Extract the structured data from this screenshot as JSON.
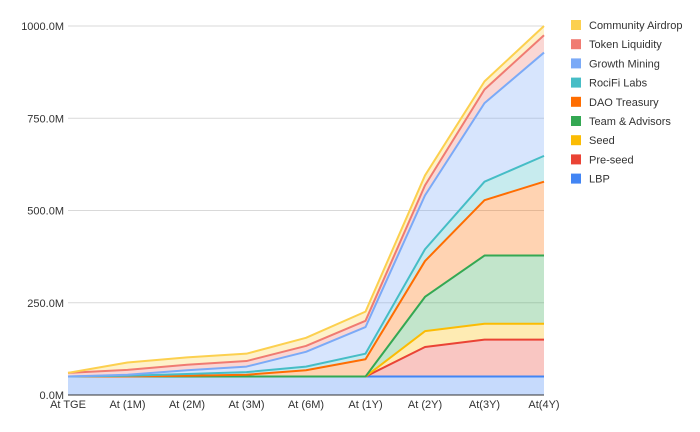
{
  "chart_data": {
    "type": "area",
    "stacked": true,
    "categories": [
      "At TGE",
      "At (1M)",
      "At (2M)",
      "At (3M)",
      "At (6M)",
      "At (1Y)",
      "At (2Y)",
      "At(3Y)",
      "At(4Y)"
    ],
    "y_ticks": [
      "0.0M",
      "250.0M",
      "500.0M",
      "750.0M",
      "1000.0M"
    ],
    "ylim": [
      0,
      1000
    ],
    "grid": true,
    "legend_position": "top-right",
    "series": [
      {
        "name": "LBP",
        "color": "#4285f4",
        "values": [
          50,
          50,
          50,
          50,
          50,
          50,
          50,
          50,
          50
        ]
      },
      {
        "name": "Pre-seed",
        "color": "#ea4335",
        "values": [
          0,
          0,
          0,
          0,
          0,
          0,
          80,
          100,
          100
        ]
      },
      {
        "name": "Seed",
        "color": "#fbbc04",
        "values": [
          0,
          0,
          0,
          0,
          0,
          0,
          43,
          43,
          43
        ]
      },
      {
        "name": "Team & Advisors",
        "color": "#34a853",
        "values": [
          0,
          0,
          0,
          0,
          0,
          0,
          93,
          185,
          185
        ]
      },
      {
        "name": "DAO Treasury",
        "color": "#ff6d01",
        "values": [
          0,
          0,
          2,
          5,
          17,
          47,
          97,
          150,
          200
        ]
      },
      {
        "name": "RociFi Labs",
        "color": "#46bdc6",
        "values": [
          0,
          2,
          5,
          7,
          10,
          15,
          32,
          50,
          70
        ]
      },
      {
        "name": "Growth Mining",
        "color": "#7baaf7",
        "values": [
          0,
          3,
          10,
          15,
          40,
          72,
          146,
          213,
          280
        ]
      },
      {
        "name": "Token Liquidity",
        "color": "#f07b72",
        "values": [
          10,
          13,
          15,
          15,
          16,
          17,
          27,
          37,
          47
        ]
      },
      {
        "name": "Community Airdrop",
        "color": "#fcd04f",
        "values": [
          0,
          20,
          20,
          20,
          22,
          25,
          27,
          22,
          25
        ]
      }
    ]
  }
}
